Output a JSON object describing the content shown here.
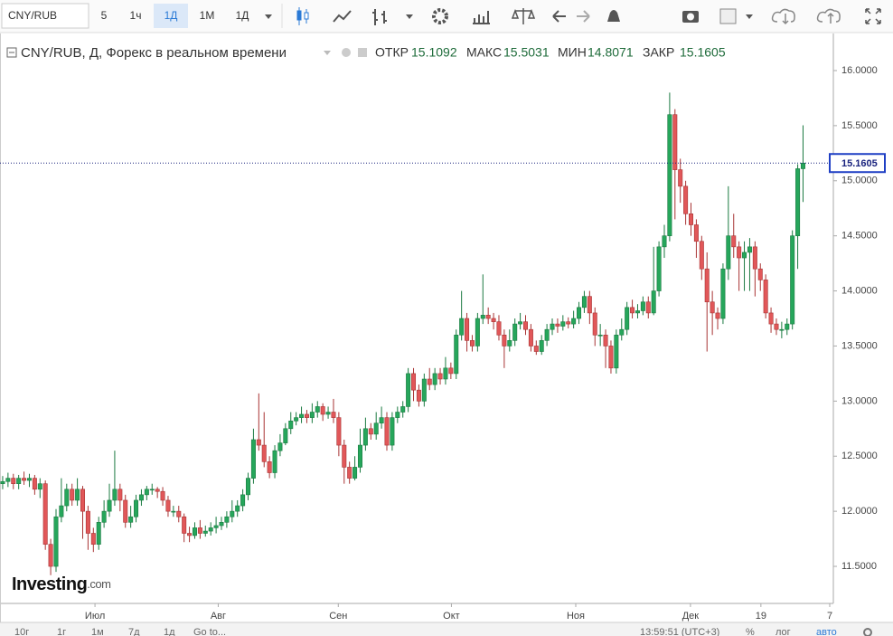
{
  "toolbar": {
    "symbol": "CNY/RUB",
    "intervals": [
      "5",
      "1ч",
      "1Д",
      "1М",
      "1Д"
    ]
  },
  "legend": {
    "title": "CNY/RUB, Д, Форекс в реальном времени",
    "open_label": "ОТКР",
    "high_label": "МАКС",
    "low_label": "МИН",
    "close_label": "ЗАКР"
  },
  "logo": {
    "name": "Investing",
    "suffix": ".com"
  },
  "footer": {
    "ranges": [
      "10г",
      "1г",
      "1м",
      "7д",
      "1д"
    ],
    "goto": "Go to...",
    "time": "13:59:51 (UTC+3)",
    "percent": "%",
    "log": "лог",
    "auto": "авто"
  },
  "chart_data": {
    "type": "candlestick",
    "up_color": "#26a65b",
    "down_color": "#e15759",
    "last_line_color": "#1a237e",
    "grid": false,
    "xlim": [
      -0.5,
      155
    ],
    "xticks": [
      {
        "value": 17.3,
        "label": "Июл"
      },
      {
        "value": 40.4,
        "label": "Авг"
      },
      {
        "value": 62.9,
        "label": "Сен"
      },
      {
        "value": 84.1,
        "label": "Окт"
      },
      {
        "value": 107.4,
        "label": "Ноя"
      },
      {
        "value": 128.9,
        "label": "Дек"
      },
      {
        "value": 142.1,
        "label": "19"
      },
      {
        "value": 155,
        "label": "7"
      }
    ],
    "ylim": [
      11.18,
      16.312
    ],
    "yticks": [
      {
        "value": 11.5,
        "label": "11.5000"
      },
      {
        "value": 12,
        "label": "12.0000"
      },
      {
        "value": 12.5,
        "label": "12.5000"
      },
      {
        "value": 13,
        "label": "13.0000"
      },
      {
        "value": 13.5,
        "label": "13.5000"
      },
      {
        "value": 14,
        "label": "14.0000"
      },
      {
        "value": 14.5,
        "label": "14.5000"
      },
      {
        "value": 15,
        "label": "15.0000"
      },
      {
        "value": 15.5,
        "label": "15.5000"
      },
      {
        "value": 16,
        "label": "16.0000"
      }
    ],
    "open": [
      12.25,
      12.27,
      12.3,
      12.25,
      12.3,
      12.28,
      12.3,
      12.2,
      12.25,
      11.7,
      11.5,
      11.95,
      12.05,
      12.2,
      12.1,
      12.2,
      12,
      11.8,
      11.7,
      11.9,
      12,
      12.1,
      12.2,
      12.1,
      11.9,
      11.95,
      12.1,
      12.15,
      12.2,
      12.2,
      12.18,
      12.1,
      12,
      12,
      11.95,
      11.8,
      11.78,
      11.85,
      11.8,
      11.82,
      11.85,
      11.87,
      11.9,
      11.95,
      12,
      12.05,
      12.15,
      12.3,
      12.65,
      12.6,
      12.45,
      12.35,
      12.55,
      12.62,
      12.75,
      12.82,
      12.85,
      12.88,
      12.85,
      12.9,
      12.95,
      12.88,
      12.9,
      12.85,
      12.6,
      12.4,
      12.3,
      12.4,
      12.6,
      12.75,
      12.7,
      12.8,
      12.85,
      12.6,
      12.85,
      12.9,
      12.95,
      13.25,
      13.1,
      13,
      13.2,
      13.15,
      13.25,
      13.2,
      13.3,
      13.25,
      13.6,
      13.75,
      13.55,
      13.5,
      13.75,
      13.78,
      13.75,
      13.72,
      13.6,
      13.5,
      13.55,
      13.7,
      13.72,
      13.65,
      13.5,
      13.45,
      13.55,
      13.65,
      13.7,
      13.68,
      13.72,
      13.7,
      13.75,
      13.85,
      13.95,
      13.8,
      13.6,
      13.6,
      13.5,
      13.3,
      13.6,
      13.65,
      13.85,
      13.8,
      13.82,
      13.9,
      13.8,
      14,
      14.4,
      14.5,
      15.6,
      15.1,
      14.95,
      14.7,
      14.6,
      14.45,
      14.2,
      13.9,
      13.8,
      13.75,
      14.2,
      14.5,
      14.4,
      14.3,
      14.35,
      14.4,
      14.2,
      14.1,
      13.8,
      13.7,
      13.65,
      13.65,
      13.7,
      14.5,
      15.1092
    ],
    "high": [
      12.32,
      12.35,
      12.34,
      12.33,
      12.36,
      12.34,
      12.33,
      12.3,
      12.28,
      11.75,
      12.02,
      12.3,
      12.25,
      12.25,
      12.3,
      12.23,
      12.05,
      11.85,
      11.95,
      12.1,
      12.25,
      12.55,
      12.25,
      12.15,
      12.05,
      12.15,
      12.2,
      12.23,
      12.25,
      12.22,
      12.22,
      12.14,
      12.05,
      12.05,
      11.98,
      11.86,
      11.9,
      11.92,
      11.87,
      11.9,
      11.95,
      11.95,
      12,
      12.1,
      12.1,
      12.2,
      12.35,
      12.75,
      13.07,
      12.9,
      12.5,
      12.6,
      12.7,
      12.8,
      12.9,
      12.9,
      12.95,
      12.92,
      12.98,
      13,
      12.98,
      12.95,
      13.02,
      12.9,
      12.65,
      12.45,
      12.5,
      12.75,
      12.85,
      12.8,
      12.9,
      12.95,
      12.9,
      12.9,
      12.95,
      13,
      13.3,
      13.3,
      13.15,
      13.25,
      13.3,
      13.3,
      13.3,
      13.4,
      13.35,
      13.65,
      14,
      13.8,
      13.6,
      13.8,
      14.15,
      13.85,
      13.8,
      13.78,
      13.65,
      13.65,
      13.75,
      13.8,
      13.78,
      13.7,
      13.55,
      13.6,
      13.7,
      13.75,
      13.75,
      13.78,
      13.76,
      13.82,
      13.9,
      14,
      14,
      13.85,
      13.7,
      13.65,
      13.55,
      13.65,
      13.75,
      13.9,
      13.92,
      13.88,
      13.95,
      13.95,
      14.4,
      14.45,
      14.6,
      15.8,
      15.65,
      15.2,
      15,
      14.8,
      14.65,
      14.5,
      14.35,
      14,
      13.85,
      14.25,
      14.95,
      14.7,
      14.45,
      14.45,
      14.48,
      14.45,
      14.25,
      14.15,
      13.85,
      13.75,
      13.72,
      13.75,
      14.55,
      15.15,
      15.5031
    ],
    "low": [
      12.2,
      12.22,
      12.2,
      12.2,
      12.24,
      12.22,
      12.15,
      12.12,
      11.65,
      11.42,
      11.45,
      11.9,
      12,
      12.05,
      12.05,
      11.75,
      11.65,
      11.63,
      11.65,
      11.85,
      11.95,
      12.05,
      12,
      11.85,
      11.85,
      11.9,
      12.05,
      12.1,
      12.15,
      12.12,
      12.05,
      11.95,
      11.95,
      11.9,
      11.72,
      11.72,
      11.75,
      11.75,
      11.77,
      11.78,
      11.8,
      11.83,
      11.85,
      11.9,
      11.95,
      12,
      12.1,
      12.25,
      12.55,
      12.4,
      12.3,
      12.3,
      12.5,
      12.6,
      12.7,
      12.78,
      12.8,
      12.8,
      12.8,
      12.85,
      12.82,
      12.84,
      12.8,
      12.5,
      12.25,
      12.25,
      12.28,
      12.35,
      12.55,
      12.65,
      12.65,
      12.75,
      12.55,
      12.55,
      12.8,
      12.85,
      12.9,
      13,
      12.95,
      12.95,
      13.1,
      13.1,
      13.15,
      13.15,
      13.2,
      13.2,
      13.55,
      13.45,
      13.45,
      13.45,
      13.7,
      13.7,
      13.65,
      13.55,
      13.3,
      13.45,
      13.5,
      13.65,
      13.6,
      13.45,
      13.42,
      13.42,
      13.5,
      13.6,
      13.62,
      13.64,
      13.66,
      13.66,
      13.7,
      13.8,
      13.7,
      13.5,
      13.5,
      13.3,
      13.25,
      13.25,
      13.55,
      13.6,
      13.75,
      13.75,
      13.78,
      13.75,
      13.78,
      13.95,
      14.3,
      14.45,
      14.65,
      14.8,
      14.6,
      14.5,
      14.3,
      14.1,
      13.45,
      13.6,
      13.65,
      13.7,
      14.1,
      14.3,
      14,
      14,
      14,
      13.95,
      14,
      13.75,
      13.62,
      13.6,
      13.57,
      13.6,
      13.65,
      14.2,
      14.8071
    ],
    "close": [
      12.27,
      12.3,
      12.25,
      12.3,
      12.28,
      12.3,
      12.2,
      12.25,
      11.7,
      11.5,
      11.95,
      12.05,
      12.2,
      12.1,
      12.2,
      12,
      11.8,
      11.7,
      11.9,
      12,
      12.1,
      12.2,
      12.1,
      11.9,
      11.95,
      12.1,
      12.15,
      12.2,
      12.2,
      12.18,
      12.1,
      12,
      12,
      11.95,
      11.8,
      11.78,
      11.85,
      11.8,
      11.82,
      11.85,
      11.87,
      11.9,
      11.95,
      12,
      12.05,
      12.15,
      12.3,
      12.65,
      12.6,
      12.45,
      12.35,
      12.55,
      12.62,
      12.75,
      12.82,
      12.85,
      12.88,
      12.85,
      12.9,
      12.95,
      12.88,
      12.9,
      12.85,
      12.6,
      12.4,
      12.3,
      12.4,
      12.6,
      12.75,
      12.7,
      12.8,
      12.85,
      12.6,
      12.85,
      12.9,
      12.95,
      13.25,
      13.1,
      13,
      13.2,
      13.15,
      13.25,
      13.2,
      13.3,
      13.25,
      13.6,
      13.75,
      13.55,
      13.5,
      13.75,
      13.78,
      13.75,
      13.72,
      13.6,
      13.5,
      13.55,
      13.7,
      13.72,
      13.65,
      13.5,
      13.45,
      13.55,
      13.65,
      13.7,
      13.68,
      13.72,
      13.7,
      13.75,
      13.85,
      13.95,
      13.8,
      13.6,
      13.6,
      13.5,
      13.3,
      13.6,
      13.65,
      13.85,
      13.8,
      13.82,
      13.9,
      13.8,
      14,
      14.4,
      14.5,
      15.6,
      15.1,
      14.95,
      14.7,
      14.6,
      14.45,
      14.2,
      13.9,
      13.8,
      13.75,
      14.2,
      14.5,
      14.4,
      14.3,
      14.35,
      14.4,
      14.2,
      14.1,
      13.8,
      13.7,
      13.65,
      13.65,
      13.7,
      14.5,
      15.1092,
      15.1605
    ]
  }
}
